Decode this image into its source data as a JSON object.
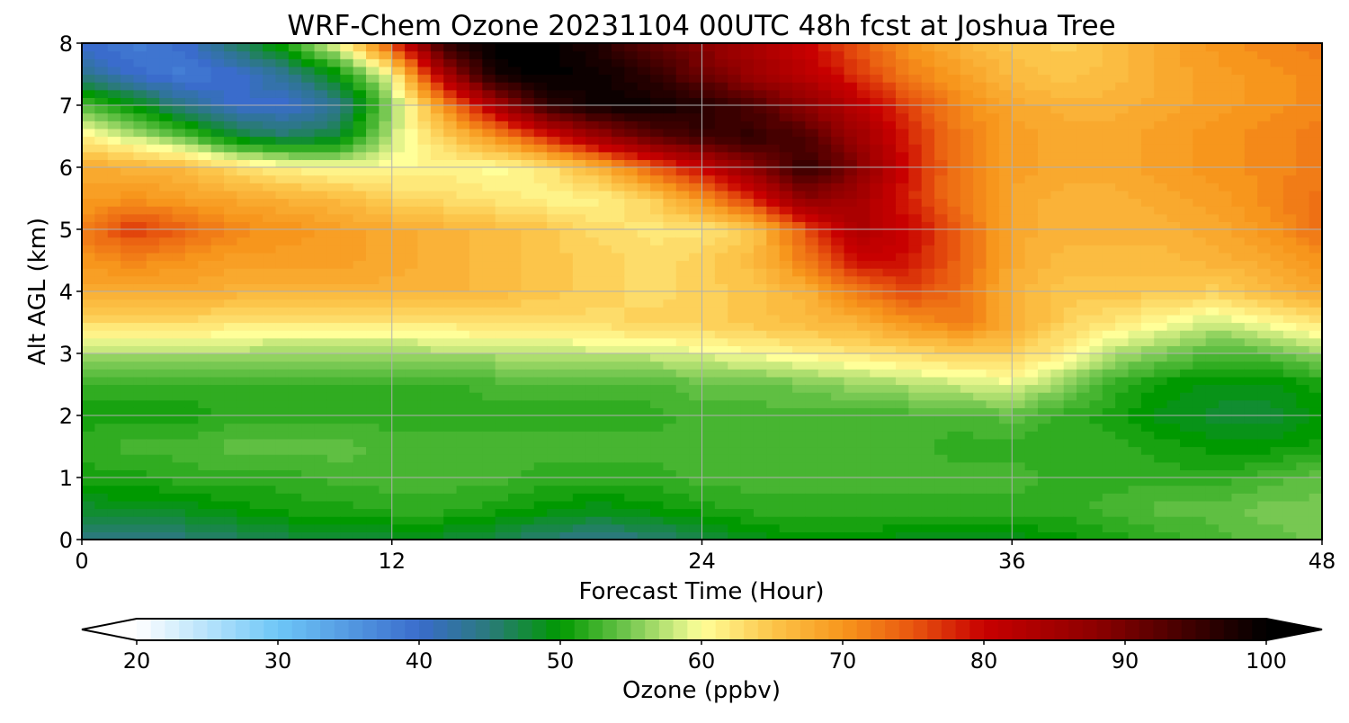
{
  "chart_data": {
    "type": "heatmap",
    "title": "WRF-Chem Ozone  20231104 00UTC 48h fcst at Joshua Tree",
    "xlabel": "Forecast Time (Hour)",
    "ylabel": "Alt AGL (km)",
    "xlim": [
      0,
      48
    ],
    "ylim": [
      0,
      8
    ],
    "x_ticks": [
      "0",
      "12",
      "24",
      "36",
      "48"
    ],
    "y_ticks": [
      "0",
      "1",
      "2",
      "3",
      "4",
      "5",
      "6",
      "7",
      "8"
    ],
    "grid": true,
    "x": [
      0,
      2,
      4,
      6,
      8,
      10,
      12,
      14,
      16,
      18,
      20,
      22,
      24,
      26,
      28,
      30,
      32,
      34,
      36,
      38,
      40,
      42,
      44,
      46,
      48
    ],
    "y": [
      0,
      0.5,
      1,
      1.5,
      2,
      2.5,
      3,
      3.5,
      4,
      4.5,
      5,
      5.5,
      6,
      6.5,
      7,
      7.5,
      8
    ],
    "z_units": "ppbv",
    "z": [
      [
        44,
        44,
        45,
        46,
        47,
        48,
        48,
        48,
        47,
        45,
        44,
        45,
        47,
        49,
        50,
        50,
        49,
        48,
        49,
        50,
        51,
        52,
        53,
        54,
        55
      ],
      [
        48,
        49,
        49,
        50,
        51,
        51,
        52,
        52,
        51,
        50,
        49,
        50,
        51,
        52,
        52,
        52,
        52,
        52,
        52,
        52,
        53,
        54,
        54,
        55,
        55
      ],
      [
        51,
        51,
        52,
        52,
        52,
        53,
        53,
        53,
        53,
        52,
        52,
        52,
        53,
        53,
        53,
        53,
        53,
        53,
        53,
        52,
        52,
        52,
        52,
        53,
        54
      ],
      [
        52,
        53,
        53,
        54,
        54,
        54,
        53,
        53,
        53,
        53,
        53,
        53,
        53,
        53,
        53,
        53,
        53,
        52,
        52,
        52,
        52,
        51,
        50,
        50,
        51
      ],
      [
        51,
        51,
        51,
        52,
        52,
        52,
        52,
        52,
        52,
        52,
        52,
        52,
        53,
        53,
        53,
        53,
        53,
        53,
        54,
        52,
        51,
        49,
        48,
        48,
        50
      ],
      [
        52,
        52,
        52,
        52,
        52,
        52,
        52,
        52,
        53,
        53,
        53,
        53,
        54,
        54,
        55,
        56,
        57,
        58,
        59,
        56,
        52,
        50,
        49,
        49,
        51
      ],
      [
        57,
        57,
        57,
        57,
        56,
        56,
        56,
        57,
        57,
        57,
        58,
        58,
        59,
        60,
        61,
        62,
        63,
        64,
        64,
        61,
        57,
        55,
        53,
        54,
        56
      ],
      [
        63,
        63,
        63,
        62,
        62,
        62,
        62,
        62,
        63,
        63,
        63,
        64,
        64,
        65,
        66,
        67,
        70,
        72,
        68,
        64,
        62,
        60,
        58,
        60,
        62
      ],
      [
        68,
        68,
        68,
        67,
        67,
        67,
        67,
        67,
        66,
        65,
        64,
        63,
        64,
        65,
        67,
        72,
        76,
        73,
        67,
        65,
        65,
        65,
        64,
        66,
        68
      ],
      [
        70,
        71,
        70,
        69,
        69,
        69,
        68,
        67,
        66,
        65,
        64,
        63,
        64,
        66,
        72,
        80,
        79,
        74,
        68,
        66,
        66,
        66,
        67,
        68,
        70
      ],
      [
        72,
        77,
        74,
        71,
        70,
        69,
        68,
        67,
        66,
        65,
        63,
        62,
        62,
        65,
        75,
        84,
        80,
        74,
        68,
        67,
        67,
        67,
        68,
        70,
        73
      ],
      [
        69,
        70,
        69,
        68,
        67,
        66,
        64,
        63,
        62,
        61,
        61,
        64,
        70,
        78,
        88,
        85,
        78,
        72,
        68,
        67,
        67,
        68,
        69,
        71,
        73
      ],
      [
        68,
        67,
        66,
        63,
        61,
        60,
        60,
        61,
        60,
        62,
        67,
        74,
        80,
        88,
        96,
        89,
        79,
        72,
        69,
        68,
        68,
        69,
        70,
        71,
        72
      ],
      [
        61,
        58,
        54,
        48,
        46,
        48,
        58,
        64,
        70,
        78,
        86,
        92,
        95,
        96,
        93,
        86,
        78,
        72,
        69,
        68,
        68,
        69,
        70,
        71,
        72
      ],
      [
        54,
        50,
        44,
        40,
        40,
        44,
        56,
        70,
        84,
        96,
        99,
        99,
        97,
        93,
        88,
        82,
        76,
        71,
        68,
        67,
        67,
        68,
        69,
        70,
        71
      ],
      [
        44,
        40,
        38,
        40,
        44,
        50,
        60,
        84,
        99,
        100,
        99,
        96,
        91,
        86,
        82,
        77,
        72,
        69,
        66,
        65,
        66,
        68,
        69,
        70,
        71
      ],
      [
        40,
        38,
        40,
        46,
        52,
        60,
        76,
        96,
        100,
        100,
        97,
        92,
        88,
        84,
        80,
        75,
        70,
        67,
        65,
        64,
        66,
        68,
        70,
        71,
        72
      ]
    ],
    "colorbar": {
      "label": "Ozone  (ppbv)",
      "min": 20,
      "max": 100,
      "ticks": [
        "20",
        "30",
        "40",
        "50",
        "60",
        "70",
        "80",
        "90",
        "100"
      ],
      "extend": "both",
      "color_stops": [
        {
          "v": 20,
          "c": "#ffffff"
        },
        {
          "v": 30,
          "c": "#6ec6f7"
        },
        {
          "v": 40,
          "c": "#3a6ccc"
        },
        {
          "v": 45,
          "c": "#2a7a7a"
        },
        {
          "v": 50,
          "c": "#009900"
        },
        {
          "v": 55,
          "c": "#77c852"
        },
        {
          "v": 60,
          "c": "#ffff99"
        },
        {
          "v": 65,
          "c": "#fcc54a"
        },
        {
          "v": 70,
          "c": "#f7961c"
        },
        {
          "v": 75,
          "c": "#e8560f"
        },
        {
          "v": 80,
          "c": "#c80000"
        },
        {
          "v": 88,
          "c": "#8c0000"
        },
        {
          "v": 100,
          "c": "#000000"
        }
      ]
    }
  }
}
